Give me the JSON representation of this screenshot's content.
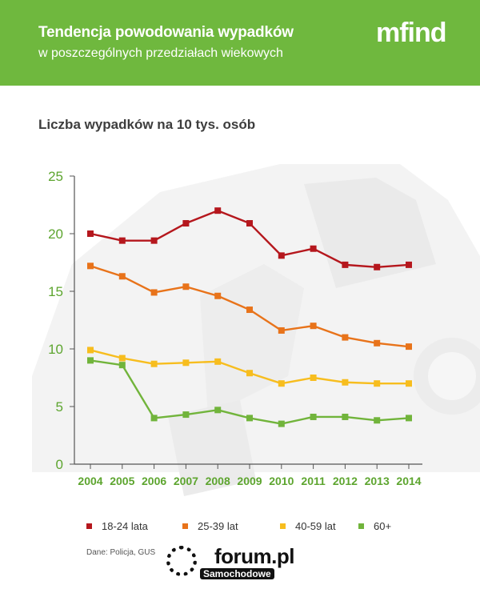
{
  "header": {
    "title": "Tendencja powodowania wypadków",
    "subtitle": "w poszczególnych przedziałach wiekowych",
    "logo_text": "mfind",
    "background_color": "#6fb83e"
  },
  "chart_data": {
    "type": "line",
    "title": "Liczba wypadków na 10 tys. osób",
    "xlabel": "",
    "ylabel": "",
    "x": [
      "2004",
      "2005",
      "2006",
      "2007",
      "2008",
      "2009",
      "2010",
      "2011",
      "2012",
      "2013",
      "2014"
    ],
    "ylim": [
      0,
      25
    ],
    "yticks": [
      "0",
      "5",
      "10",
      "15",
      "20",
      "25"
    ],
    "grid": false,
    "legend_position": "bottom",
    "tick_color": "#5da52f",
    "series": [
      {
        "name": "18-24 lata",
        "color": "#b5171d",
        "values": [
          20.0,
          19.4,
          19.4,
          20.9,
          22.0,
          20.9,
          18.1,
          18.7,
          17.3,
          17.1,
          17.3
        ]
      },
      {
        "name": "25-39 lat",
        "color": "#e8731a",
        "values": [
          17.2,
          16.3,
          14.9,
          15.4,
          14.6,
          13.4,
          11.6,
          12.0,
          11.0,
          10.5,
          10.2
        ]
      },
      {
        "name": "40-59 lat",
        "color": "#f7bd1e",
        "values": [
          9.9,
          9.2,
          8.7,
          8.8,
          8.9,
          7.9,
          7.0,
          7.5,
          7.1,
          7.0,
          7.0
        ]
      },
      {
        "name": "60+",
        "color": "#71b43b",
        "values": [
          9.0,
          8.6,
          4.0,
          4.3,
          4.7,
          4.0,
          3.5,
          4.1,
          4.1,
          3.8,
          4.0
        ]
      }
    ]
  },
  "source": "Dane: Policja, GUS",
  "watermark": {
    "main": "forum.pl",
    "sub": "Samochodowe"
  }
}
